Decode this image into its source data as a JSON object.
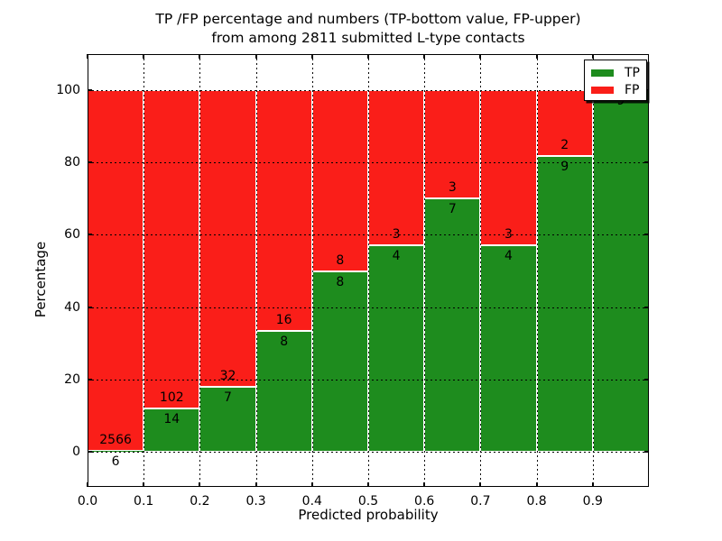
{
  "title": {
    "line1": "TP /FP percentage and numbers (TP-bottom value, FP-upper)",
    "line2": "from among 2811 submitted L-type contacts"
  },
  "chart_data": {
    "type": "bar",
    "stacked": true,
    "title": "TP /FP percentage and numbers (TP-bottom value, FP-upper)\nfrom among 2811 submitted L-type contacts",
    "total_contacts": 2811,
    "xlabel": "Predicted probability",
    "ylabel": "Percentage",
    "bin_edges": [
      0.0,
      0.1,
      0.2,
      0.3,
      0.4,
      0.5,
      0.6,
      0.7,
      0.8,
      0.9,
      1.0
    ],
    "x_ticks": [
      "0.0",
      "0.1",
      "0.2",
      "0.3",
      "0.4",
      "0.5",
      "0.6",
      "0.7",
      "0.8",
      "0.9"
    ],
    "y_ticks": [
      "0",
      "20",
      "40",
      "60",
      "80",
      "100"
    ],
    "ylim": [
      0,
      100
    ],
    "grid": true,
    "series": [
      {
        "name": "TP",
        "color": "#1e8c1e",
        "counts": [
          6,
          14,
          7,
          8,
          8,
          4,
          7,
          4,
          9,
          9
        ],
        "pct": [
          0.23,
          12.07,
          17.95,
          33.33,
          50.0,
          57.14,
          70.0,
          57.14,
          81.82,
          100.0
        ]
      },
      {
        "name": "FP",
        "color": "#fa1e19",
        "counts": [
          2566,
          102,
          32,
          16,
          8,
          3,
          3,
          3,
          2,
          0
        ],
        "pct": [
          99.77,
          87.93,
          82.05,
          66.67,
          50.0,
          42.86,
          30.0,
          42.86,
          18.18,
          0.0
        ]
      }
    ],
    "bar_labels": {
      "tp": [
        "6",
        "14",
        "7",
        "8",
        "8",
        "4",
        "7",
        "4",
        "9",
        "9"
      ],
      "fp": [
        "2566",
        "102",
        "32",
        "16",
        "8",
        "3",
        "3",
        "3",
        "2",
        ""
      ]
    },
    "legend": {
      "position": "upper right",
      "entries": [
        {
          "label": "TP",
          "color": "#1e8c1e"
        },
        {
          "label": "FP",
          "color": "#fa1e19"
        }
      ]
    }
  }
}
